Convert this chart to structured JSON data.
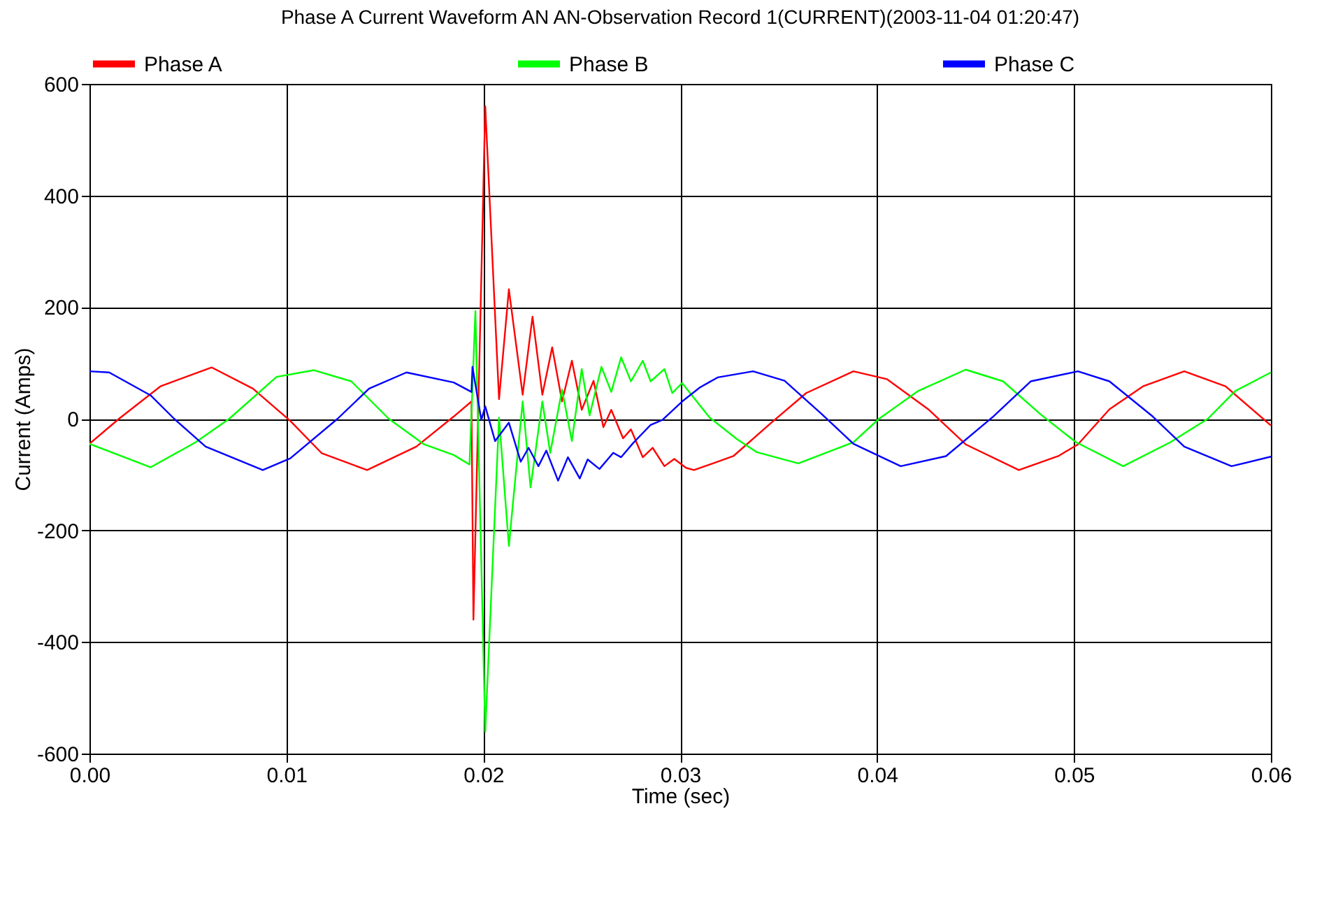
{
  "chart_data": {
    "type": "line",
    "title": "Phase A Current Waveform AN AN-Observation Record 1(CURRENT)(2003-11-04 01:20:47)",
    "xlabel": "Time (sec)",
    "ylabel": "Current (Amps)",
    "xlim": [
      0,
      0.06
    ],
    "ylim": [
      -600,
      600
    ],
    "xticks": [
      {
        "value": 0,
        "label": "0.00"
      },
      {
        "value": 0.01,
        "label": "0.01"
      },
      {
        "value": 0.02,
        "label": "0.02"
      },
      {
        "value": 0.03,
        "label": "0.03"
      },
      {
        "value": 0.04,
        "label": "0.04"
      },
      {
        "value": 0.05,
        "label": "0.05"
      },
      {
        "value": 0.06,
        "label": "0.06"
      }
    ],
    "yticks": [
      -600,
      -400,
      -200,
      0,
      200,
      400,
      600
    ],
    "grid": true,
    "legend": "top",
    "line_style": "solid",
    "series": [
      {
        "name": "Phase A",
        "color": "#ff0000",
        "x": [
          0,
          0.0015,
          0.0036,
          0.0062,
          0.0083,
          0.0102,
          0.0118,
          0.0141,
          0.0166,
          0.0185,
          0.0194,
          0.0195,
          0.0201,
          0.0208,
          0.0213,
          0.022,
          0.0225,
          0.023,
          0.0235,
          0.024,
          0.0245,
          0.025,
          0.0256,
          0.0261,
          0.0265,
          0.0271,
          0.0275,
          0.0281,
          0.0286,
          0.0292,
          0.0297,
          0.0303,
          0.0307,
          0.0327,
          0.0346,
          0.0364,
          0.0388,
          0.0405,
          0.0426,
          0.0445,
          0.0472,
          0.0492,
          0.0502,
          0.0518,
          0.0535,
          0.0556,
          0.0577,
          0.06
        ],
        "values": [
          -45,
          0,
          58,
          92,
          54,
          -4,
          -62,
          -92,
          -50,
          4,
          31,
          -360,
          560,
          35,
          232,
          43,
          183,
          43,
          128,
          31,
          104,
          16,
          68,
          -15,
          16,
          -35,
          -19,
          -69,
          -52,
          -85,
          -72,
          -88,
          -92,
          -67,
          -8,
          46,
          85,
          71,
          17,
          -46,
          -92,
          -67,
          -46,
          17,
          58,
          85,
          58,
          -12
        ]
      },
      {
        "name": "Phase B",
        "color": "#00ff00",
        "x": [
          0,
          0.0031,
          0.0054,
          0.0071,
          0.0095,
          0.0114,
          0.0133,
          0.0152,
          0.017,
          0.0185,
          0.0193,
          0.0196,
          0.0201,
          0.0208,
          0.0213,
          0.022,
          0.0224,
          0.023,
          0.0234,
          0.024,
          0.0245,
          0.025,
          0.0254,
          0.026,
          0.0265,
          0.027,
          0.0275,
          0.0281,
          0.0285,
          0.0292,
          0.0296,
          0.0301,
          0.0315,
          0.0329,
          0.0339,
          0.036,
          0.0388,
          0.0401,
          0.0421,
          0.0445,
          0.0464,
          0.0483,
          0.0501,
          0.0525,
          0.0549,
          0.0568,
          0.0582,
          0.06
        ],
        "values": [
          -45,
          -87,
          -42,
          0,
          75,
          87,
          67,
          0,
          -46,
          -65,
          -82,
          193,
          -561,
          2,
          -228,
          31,
          -123,
          31,
          -61,
          52,
          -40,
          89,
          6,
          93,
          48,
          110,
          67,
          104,
          67,
          89,
          46,
          64,
          2,
          -37,
          -60,
          -80,
          -42,
          0,
          50,
          88,
          67,
          8,
          -42,
          -85,
          -42,
          0,
          50,
          83
        ]
      },
      {
        "name": "Phase C",
        "color": "#0000ff",
        "x": [
          0,
          0.001,
          0.0031,
          0.0043,
          0.0059,
          0.0088,
          0.0102,
          0.0126,
          0.0142,
          0.0161,
          0.0185,
          0.0194,
          0.01945,
          0.0199,
          0.0201,
          0.0206,
          0.0213,
          0.0219,
          0.0223,
          0.0228,
          0.0232,
          0.0238,
          0.0243,
          0.0249,
          0.0253,
          0.0259,
          0.0266,
          0.027,
          0.0276,
          0.0285,
          0.0291,
          0.0301,
          0.031,
          0.0319,
          0.0337,
          0.0353,
          0.0372,
          0.0388,
          0.0412,
          0.0435,
          0.0459,
          0.0478,
          0.0502,
          0.0518,
          0.054,
          0.0556,
          0.058,
          0.06
        ],
        "values": [
          85,
          83,
          42,
          0,
          -50,
          -92,
          -71,
          0,
          54,
          83,
          65,
          48,
          93,
          -2,
          22,
          -40,
          -7,
          -77,
          -52,
          -85,
          -57,
          -111,
          -69,
          -107,
          -73,
          -90,
          -61,
          -69,
          -44,
          -11,
          -2,
          31,
          56,
          74,
          85,
          68,
          8,
          -45,
          -85,
          -67,
          4,
          67,
          85,
          67,
          4,
          -50,
          -85,
          -68
        ]
      }
    ]
  }
}
